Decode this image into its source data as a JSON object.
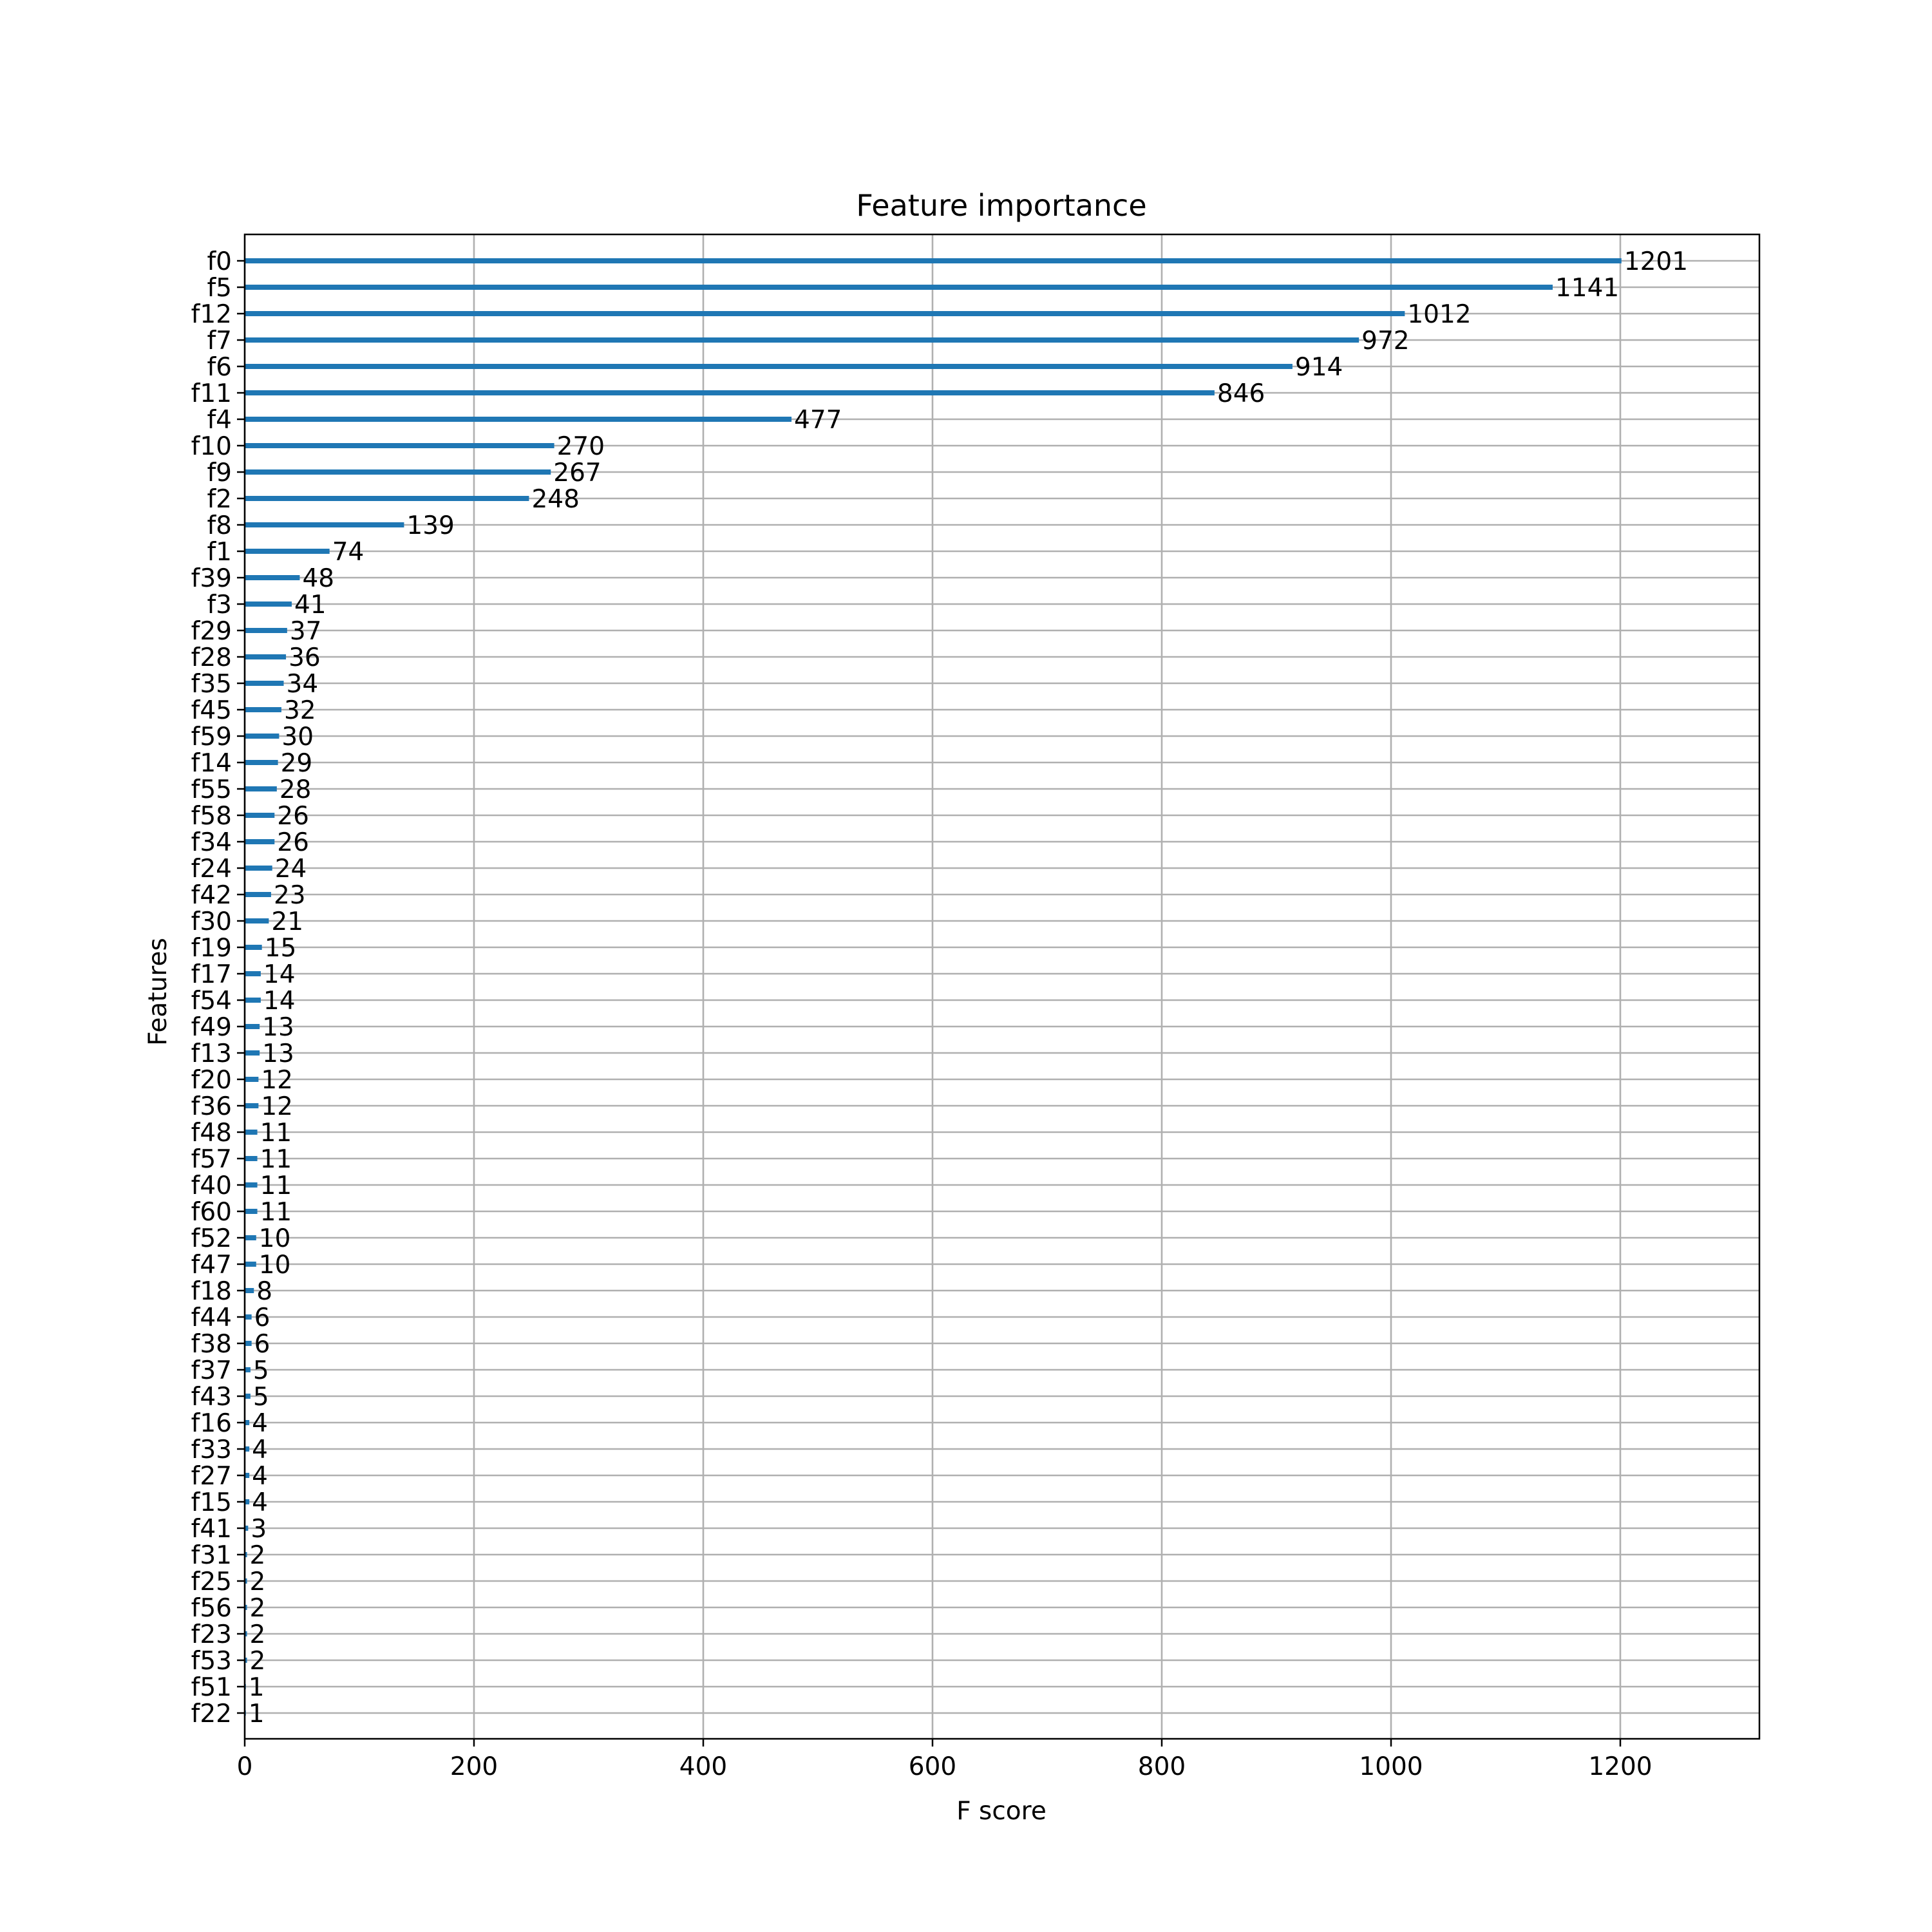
{
  "chart_data": {
    "type": "bar",
    "orientation": "horizontal",
    "title": "Feature importance",
    "xlabel": "F score",
    "ylabel": "Features",
    "xlim": [
      0,
      1320
    ],
    "xticks": [
      0,
      200,
      400,
      600,
      800,
      1000,
      1200
    ],
    "grid": true,
    "bar_color": "#1f77b4",
    "grid_color": "#b0b0b0",
    "categories": [
      "f0",
      "f5",
      "f12",
      "f7",
      "f6",
      "f11",
      "f4",
      "f10",
      "f9",
      "f2",
      "f8",
      "f1",
      "f39",
      "f3",
      "f29",
      "f28",
      "f35",
      "f45",
      "f59",
      "f14",
      "f55",
      "f58",
      "f34",
      "f24",
      "f42",
      "f30",
      "f19",
      "f17",
      "f54",
      "f49",
      "f13",
      "f20",
      "f36",
      "f48",
      "f57",
      "f40",
      "f60",
      "f52",
      "f47",
      "f18",
      "f44",
      "f38",
      "f37",
      "f43",
      "f16",
      "f33",
      "f27",
      "f15",
      "f41",
      "f31",
      "f25",
      "f56",
      "f23",
      "f53",
      "f51",
      "f22"
    ],
    "values": [
      1201,
      1141,
      1012,
      972,
      914,
      846,
      477,
      270,
      267,
      248,
      139,
      74,
      48,
      41,
      37,
      36,
      34,
      32,
      30,
      29,
      28,
      26,
      26,
      24,
      23,
      21,
      15,
      14,
      14,
      13,
      13,
      12,
      12,
      11,
      11,
      11,
      11,
      10,
      10,
      8,
      6,
      6,
      5,
      5,
      4,
      4,
      4,
      4,
      3,
      2,
      2,
      2,
      2,
      2,
      1,
      1
    ]
  }
}
